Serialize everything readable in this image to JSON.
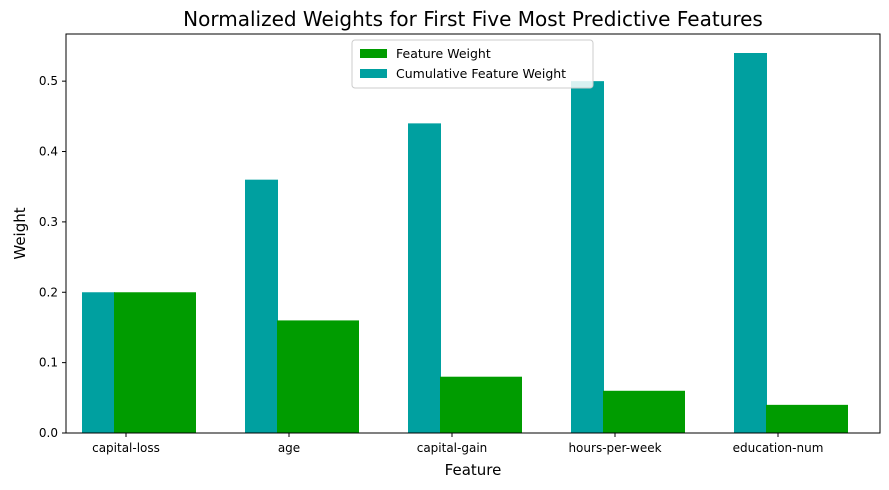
{
  "chart_data": {
    "type": "bar",
    "title": "Normalized Weights for First Five Most Predictive Features",
    "xlabel": "Feature",
    "ylabel": "Weight",
    "categories": [
      "capital-loss",
      "age",
      "capital-gain",
      "hours-per-week",
      "education-num"
    ],
    "series": [
      {
        "name": "Feature Weight",
        "color": "#009c00",
        "values": [
          0.2,
          0.16,
          0.08,
          0.06,
          0.04
        ]
      },
      {
        "name": "Cumulative Feature Weight",
        "color": "#00a0a0",
        "values": [
          0.2,
          0.36,
          0.44,
          0.5,
          0.54
        ]
      }
    ],
    "ylim": [
      0,
      0.567
    ],
    "yticks": [
      0.0,
      0.1,
      0.2,
      0.3,
      0.4,
      0.5
    ],
    "ytick_labels": [
      "0.0",
      "0.1",
      "0.2",
      "0.3",
      "0.4",
      "0.5"
    ],
    "legend_position": "upper-center",
    "grid": false
  }
}
